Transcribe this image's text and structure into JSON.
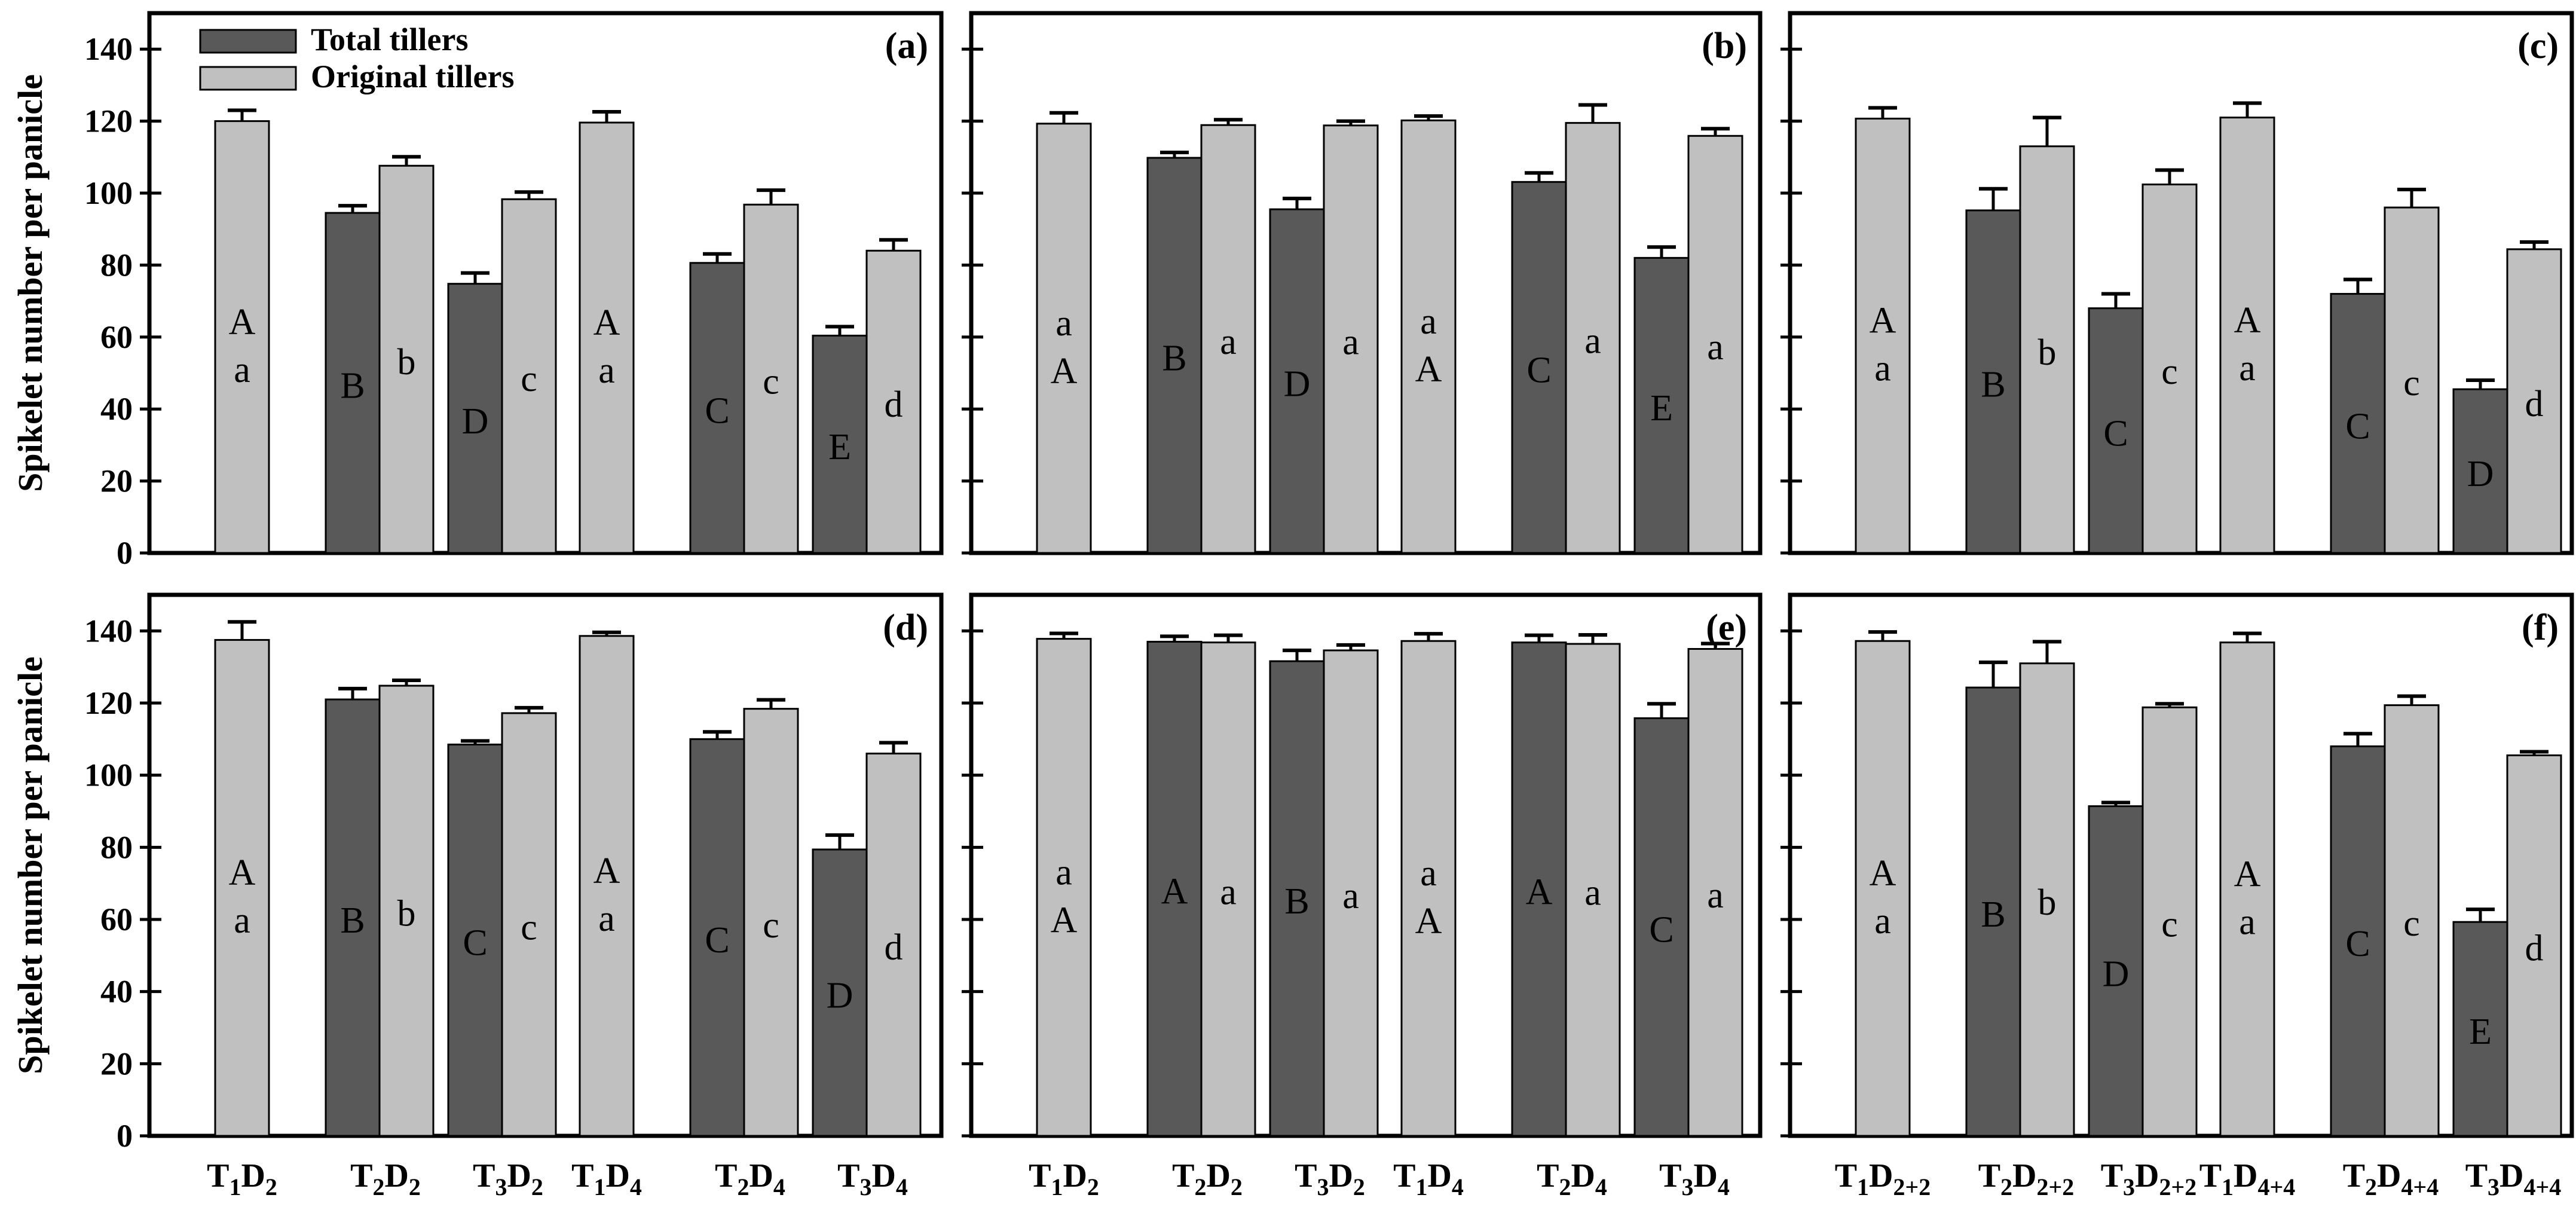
{
  "figure": {
    "ylabel": "Spikelet number per panicle",
    "legend": [
      {
        "name": "Total tillers",
        "color": "#595959"
      },
      {
        "name": "Original tillers",
        "color": "#c0c0c0"
      }
    ],
    "colors": {
      "dark": "#595959",
      "light": "#c0c0c0",
      "axis": "#000000"
    }
  },
  "chart_data": [
    {
      "panel": "(a)",
      "type": "bar",
      "ylim": [
        0,
        150
      ],
      "yticks": [
        0,
        20,
        40,
        60,
        80,
        100,
        120,
        140
      ],
      "groups": [
        {
          "sub": "2",
          "categories": [
            "T₁D₂",
            "T₂D₂",
            "T₃D₂"
          ]
        },
        {
          "sub": "4",
          "categories": [
            "T₁D₄",
            "T₂D₄",
            "T₃D₄"
          ]
        }
      ],
      "series": [
        {
          "name": "Total tillers",
          "values": [
            [
              null,
              94.5,
              74.8
            ],
            [
              null,
              80.6,
              60.4
            ]
          ],
          "errors": [
            [
              null,
              2,
              3
            ],
            [
              null,
              2.5,
              2.5
            ]
          ],
          "labels": [
            [
              null,
              "B",
              "D"
            ],
            [
              null,
              "C",
              "E"
            ]
          ]
        },
        {
          "name": "Original tillers",
          "values": [
            [
              120,
              107.6,
              98.3
            ],
            [
              119.6,
              96.8,
              84
            ]
          ],
          "errors": [
            [
              3,
              2.5,
              2
            ],
            [
              3,
              4,
              3
            ]
          ],
          "labels": [
            [
              "A a",
              "b",
              "c"
            ],
            [
              "A a",
              "c",
              "d"
            ]
          ]
        }
      ]
    },
    {
      "panel": "(b)",
      "type": "bar",
      "ylim": [
        0,
        150
      ],
      "yticks": [
        0,
        20,
        40,
        60,
        80,
        100,
        120,
        140
      ],
      "groups": [
        {
          "sub": "2",
          "categories": [
            "T₁D₂",
            "T₂D₂",
            "T₃D₂"
          ]
        },
        {
          "sub": "4",
          "categories": [
            "T₁D₄",
            "T₂D₄",
            "T₃D₄"
          ]
        }
      ],
      "series": [
        {
          "name": "Total tillers",
          "values": [
            [
              null,
              109.8,
              95.5
            ],
            [
              null,
              103.1,
              82
            ]
          ],
          "errors": [
            [
              null,
              1.5,
              3
            ],
            [
              null,
              2.5,
              3
            ]
          ],
          "labels": [
            [
              null,
              "B",
              "D"
            ],
            [
              null,
              "C",
              "E"
            ]
          ]
        },
        {
          "name": "Original tillers",
          "values": [
            [
              119.3,
              118.9,
              118.8
            ],
            [
              120.2,
              119.5,
              115.9
            ]
          ],
          "errors": [
            [
              3,
              1.5,
              1.2
            ],
            [
              1.2,
              5,
              2
            ]
          ],
          "labels": [
            [
              "a A",
              "a",
              "a"
            ],
            [
              "a A",
              "a",
              "a"
            ]
          ]
        }
      ]
    },
    {
      "panel": "(c)",
      "type": "bar",
      "ylim": [
        0,
        150
      ],
      "yticks": [
        0,
        20,
        40,
        60,
        80,
        100,
        120,
        140
      ],
      "groups": [
        {
          "sub": "2+2",
          "categories": [
            "T₁D₂₊₂",
            "T₂D₂₊₂",
            "T₃D₂₊₂"
          ]
        },
        {
          "sub": "4+4",
          "categories": [
            "T₁D₄₊₄",
            "T₂D₄₊₄",
            "T₃D₄₊₄"
          ]
        }
      ],
      "series": [
        {
          "name": "Total tillers",
          "values": [
            [
              null,
              95.2,
              68
            ],
            [
              null,
              72,
              45.5
            ]
          ],
          "errors": [
            [
              null,
              6,
              4
            ],
            [
              null,
              4,
              2.5
            ]
          ],
          "labels": [
            [
              null,
              "B",
              "C"
            ],
            [
              null,
              "C",
              "D"
            ]
          ]
        },
        {
          "name": "Original tillers",
          "values": [
            [
              120.7,
              113,
              102.4
            ],
            [
              121,
              96,
              84.4
            ]
          ],
          "errors": [
            [
              3,
              8,
              4
            ],
            [
              4,
              5,
              2
            ]
          ],
          "labels": [
            [
              "A a",
              "b",
              "c"
            ],
            [
              "A a",
              "c",
              "d"
            ]
          ]
        }
      ]
    },
    {
      "panel": "(d)",
      "type": "bar",
      "ylim": [
        0,
        150
      ],
      "yticks": [
        0,
        20,
        40,
        60,
        80,
        100,
        120,
        140
      ],
      "groups": [
        {
          "sub": "2",
          "categories": [
            "T₁D₂",
            "T₂D₂",
            "T₃D₂"
          ]
        },
        {
          "sub": "4",
          "categories": [
            "T₁D₄",
            "T₂D₄",
            "T₃D₄"
          ]
        }
      ],
      "series": [
        {
          "name": "Total tillers",
          "values": [
            [
              null,
              121,
              108.5
            ],
            [
              null,
              110,
              79.4
            ]
          ],
          "errors": [
            [
              null,
              3,
              1
            ],
            [
              null,
              2,
              4
            ]
          ],
          "labels": [
            [
              null,
              "B",
              "C"
            ],
            [
              null,
              "C",
              "D"
            ]
          ]
        },
        {
          "name": "Original tillers",
          "values": [
            [
              137.5,
              124.8,
              117.2
            ],
            [
              138.6,
              118.4,
              106
            ]
          ],
          "errors": [
            [
              5,
              1.5,
              1.5
            ],
            [
              1,
              2.5,
              3
            ]
          ],
          "labels": [
            [
              "A a",
              "b",
              "c"
            ],
            [
              "A a",
              "c",
              "d"
            ]
          ]
        }
      ]
    },
    {
      "panel": "(e)",
      "type": "bar",
      "ylim": [
        0,
        150
      ],
      "yticks": [
        0,
        20,
        40,
        60,
        80,
        100,
        120,
        140
      ],
      "groups": [
        {
          "sub": "2",
          "categories": [
            "T₁D₂",
            "T₂D₂",
            "T₃D₂"
          ]
        },
        {
          "sub": "4",
          "categories": [
            "T₁D₄",
            "T₂D₄",
            "T₃D₄"
          ]
        }
      ],
      "series": [
        {
          "name": "Total tillers",
          "values": [
            [
              null,
              137,
              131.6
            ],
            [
              null,
              136.8,
              115.8
            ]
          ],
          "errors": [
            [
              null,
              1.5,
              3
            ],
            [
              null,
              2,
              4
            ]
          ],
          "labels": [
            [
              null,
              "A",
              "B"
            ],
            [
              null,
              "A",
              "C"
            ]
          ]
        },
        {
          "name": "Original tillers",
          "values": [
            [
              137.8,
              136.8,
              134.6
            ],
            [
              137.2,
              136.4,
              135
            ]
          ],
          "errors": [
            [
              1.5,
              2,
              1.5
            ],
            [
              2,
              2.5,
              1.5
            ]
          ],
          "labels": [
            [
              "a A",
              "a",
              "a"
            ],
            [
              "a A",
              "a",
              "a"
            ]
          ]
        }
      ]
    },
    {
      "panel": "(f)",
      "type": "bar",
      "ylim": [
        0,
        150
      ],
      "yticks": [
        0,
        20,
        40,
        60,
        80,
        100,
        120,
        140
      ],
      "groups": [
        {
          "sub": "2+2",
          "categories": [
            "T₁D₂₊₂",
            "T₂D₂₊₂",
            "T₃D₂₊₂"
          ]
        },
        {
          "sub": "4+4",
          "categories": [
            "T₁D₄₊₄",
            "T₂D₄₊₄",
            "T₃D₄₊₄"
          ]
        }
      ],
      "series": [
        {
          "name": "Total tillers",
          "values": [
            [
              null,
              124.3,
              91.4
            ],
            [
              null,
              108,
              59.3
            ]
          ],
          "errors": [
            [
              null,
              7,
              1
            ],
            [
              null,
              3.5,
              3.5
            ]
          ],
          "labels": [
            [
              null,
              "B",
              "D"
            ],
            [
              null,
              "C",
              "E"
            ]
          ]
        },
        {
          "name": "Original tillers",
          "values": [
            [
              137.2,
              131,
              118.8
            ],
            [
              136.8,
              119.4,
              105.5
            ]
          ],
          "errors": [
            [
              2.5,
              6,
              1
            ],
            [
              2.5,
              2.5,
              1
            ]
          ],
          "labels": [
            [
              "A a",
              "b",
              "c"
            ],
            [
              "A a",
              "c",
              "d"
            ]
          ]
        }
      ]
    }
  ]
}
